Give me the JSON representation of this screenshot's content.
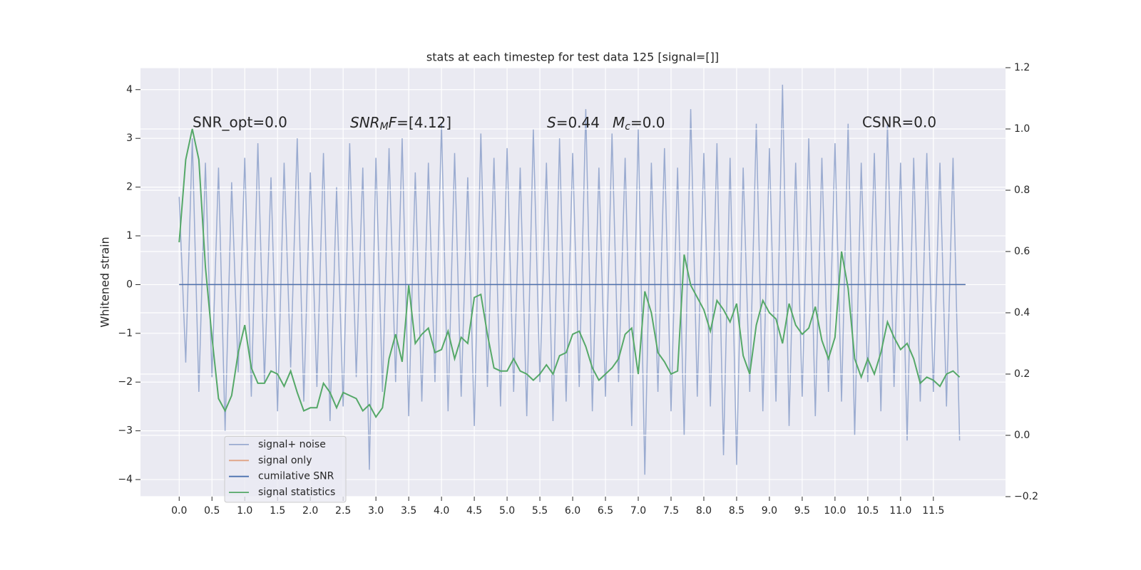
{
  "chart_data": {
    "type": "line",
    "title": "stats at each timestep for test data 125 [signal=[]]",
    "y_label": "Whitened strain",
    "annotations": [
      "SNR_opt=0.0",
      [
        "SNR",
        "M",
        "F",
        "=[4.12]"
      ],
      [
        "S",
        "=0.44"
      ],
      [
        "M",
        "c",
        "=0.0"
      ],
      "CSNR=0.0"
    ],
    "xlim": [
      -0.59,
      12.6
    ],
    "ylim": [
      -4.35,
      4.45
    ],
    "y2lim": [
      -0.2,
      1.2
    ],
    "xticks": [
      {
        "value": 0,
        "label": "0.0"
      },
      0.5,
      {
        "value": 1,
        "label": "1.0"
      },
      1.5,
      {
        "value": 2,
        "label": "2.0"
      },
      2.5,
      {
        "value": 3,
        "label": "3.0"
      },
      3.5,
      {
        "value": 4,
        "label": "4.0"
      },
      4.5,
      {
        "value": 5,
        "label": "5.0"
      },
      5.5,
      {
        "value": 6,
        "label": "6.0"
      },
      6.5,
      {
        "value": 7,
        "label": "7.0"
      },
      7.5,
      {
        "value": 8,
        "label": "8.0"
      },
      8.5,
      {
        "value": 9,
        "label": "9.0"
      },
      9.5,
      {
        "value": 10,
        "label": "10.0"
      },
      10.5,
      {
        "value": 11,
        "label": "11.0"
      },
      11.5
    ],
    "yticks": [
      {
        "value": -4,
        "label": "−4"
      },
      {
        "value": -3,
        "label": "−3"
      },
      {
        "value": -2,
        "label": "−2"
      },
      {
        "value": -1,
        "label": "−1"
      },
      0,
      1,
      2,
      3,
      4
    ],
    "y2ticks": [
      {
        "value": -0.2,
        "label": "−0.2"
      },
      {
        "value": 0,
        "label": "0.0"
      },
      0.2,
      0.4,
      0.6,
      0.8,
      {
        "value": 1,
        "label": "1.0"
      },
      1.2
    ],
    "grid": true,
    "legend": "lower left",
    "x": [
      0,
      0.1,
      0.2,
      0.3,
      0.4,
      0.5,
      0.6,
      0.7,
      0.8,
      0.9,
      1,
      1.1,
      1.2,
      1.3,
      1.4,
      1.5,
      1.6,
      1.7,
      1.8,
      1.9,
      2,
      2.1,
      2.2,
      2.3,
      2.4,
      2.5,
      2.6,
      2.7,
      2.8,
      2.9,
      3,
      3.1,
      3.2,
      3.3,
      3.4,
      3.5,
      3.6,
      3.7,
      3.8,
      3.9,
      4,
      4.1,
      4.2,
      4.3,
      4.4,
      4.5,
      4.6,
      4.7,
      4.8,
      4.9,
      5,
      5.1,
      5.2,
      5.3,
      5.4,
      5.5,
      5.6,
      5.7,
      5.8,
      5.9,
      6,
      6.1,
      6.2,
      6.3,
      6.4,
      6.5,
      6.6,
      6.7,
      6.8,
      6.9,
      7,
      7.1,
      7.2,
      7.3,
      7.4,
      7.5,
      7.6,
      7.7,
      7.8,
      7.9,
      8,
      8.1,
      8.2,
      8.3,
      8.4,
      8.5,
      8.6,
      8.7,
      8.8,
      8.9,
      9,
      9.1,
      9.2,
      9.3,
      9.4,
      9.5,
      9.6,
      9.7,
      9.8,
      9.9,
      10,
      10.1,
      10.2,
      10.3,
      10.4,
      10.5,
      10.6,
      10.7,
      10.8,
      10.9,
      11,
      11.1,
      11.2,
      11.3,
      11.4,
      11.5,
      11.6,
      11.7,
      11.8,
      11.9
    ],
    "series": [
      {
        "name": "signal+ noise",
        "color": "#9aabd0",
        "values": [
          1.8,
          -1.6,
          3.0,
          -2.2,
          2.5,
          -1.9,
          2.4,
          -3.0,
          2.1,
          -1.8,
          2.6,
          -2.3,
          2.9,
          -2.0,
          2.2,
          -2.6,
          2.5,
          -1.7,
          3.0,
          -2.4,
          2.3,
          -2.1,
          2.7,
          -2.8,
          2.0,
          -2.5,
          2.9,
          -1.9,
          2.4,
          -3.8,
          2.6,
          -2.2,
          2.8,
          -2.0,
          3.0,
          -2.7,
          2.3,
          -2.4,
          2.5,
          -2.0,
          3.3,
          -2.6,
          2.7,
          -2.3,
          2.2,
          -2.9,
          3.1,
          -2.1,
          2.6,
          -2.5,
          2.8,
          -2.2,
          2.4,
          -2.7,
          3.2,
          -2.0,
          2.5,
          -2.8,
          3.0,
          -2.4,
          2.7,
          -2.1,
          3.6,
          -2.6,
          2.4,
          -2.3,
          3.1,
          -2.0,
          2.6,
          -2.9,
          3.2,
          -3.9,
          2.5,
          -2.2,
          2.8,
          -2.6,
          2.4,
          -3.1,
          3.6,
          -2.3,
          2.7,
          -2.5,
          2.9,
          -3.5,
          2.6,
          -3.7,
          2.4,
          -2.2,
          3.3,
          -2.6,
          2.8,
          -2.4,
          4.1,
          -2.9,
          2.5,
          -2.3,
          3.0,
          -2.7,
          2.6,
          -2.2,
          2.9,
          -2.4,
          3.3,
          -3.1,
          2.5,
          -2.0,
          2.7,
          -2.6,
          3.3,
          -2.1,
          2.5,
          -3.2,
          2.6,
          -2.4,
          2.7,
          -2.2,
          2.5,
          -2.5,
          2.6,
          -3.2
        ]
      },
      {
        "name": "signal only",
        "color": "#e0a283",
        "x": [
          0,
          11.99
        ],
        "values": [
          0,
          0
        ]
      },
      {
        "name": "cumilative SNR",
        "color": "#4c72b0",
        "x": [
          0,
          11.99
        ],
        "values": [
          0,
          0
        ]
      },
      {
        "name": "signal statistics",
        "color": "#55a868",
        "axis": "y2",
        "values": [
          0.63,
          0.9,
          1.0,
          0.9,
          0.55,
          0.32,
          0.12,
          0.08,
          0.13,
          0.27,
          0.36,
          0.22,
          0.17,
          0.17,
          0.21,
          0.2,
          0.16,
          0.21,
          0.14,
          0.08,
          0.09,
          0.09,
          0.17,
          0.14,
          0.09,
          0.14,
          0.13,
          0.12,
          0.08,
          0.1,
          0.06,
          0.09,
          0.25,
          0.33,
          0.24,
          0.49,
          0.3,
          0.33,
          0.35,
          0.27,
          0.28,
          0.34,
          0.25,
          0.32,
          0.3,
          0.45,
          0.46,
          0.33,
          0.22,
          0.21,
          0.21,
          0.25,
          0.21,
          0.2,
          0.18,
          0.2,
          0.23,
          0.2,
          0.26,
          0.27,
          0.33,
          0.34,
          0.29,
          0.22,
          0.18,
          0.2,
          0.22,
          0.25,
          0.33,
          0.35,
          0.2,
          0.47,
          0.4,
          0.27,
          0.24,
          0.2,
          0.21,
          0.59,
          0.49,
          0.45,
          0.41,
          0.34,
          0.44,
          0.41,
          0.37,
          0.43,
          0.26,
          0.2,
          0.36,
          0.44,
          0.4,
          0.38,
          0.3,
          0.43,
          0.36,
          0.33,
          0.35,
          0.42,
          0.31,
          0.25,
          0.32,
          0.6,
          0.48,
          0.25,
          0.19,
          0.25,
          0.2,
          0.27,
          0.37,
          0.32,
          0.28,
          0.3,
          0.25,
          0.17,
          0.19,
          0.18,
          0.16,
          0.2,
          0.21,
          0.19
        ]
      }
    ]
  }
}
